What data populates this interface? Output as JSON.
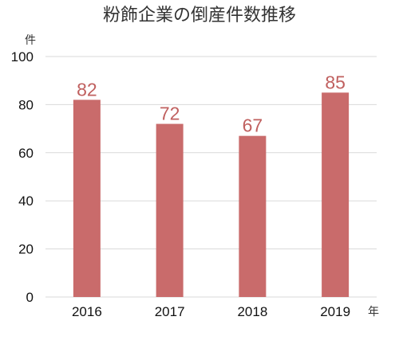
{
  "chart_data": {
    "type": "bar",
    "title": "粉飾企業の倒産件数推移",
    "ylabel": "件",
    "xlabel": "年",
    "categories": [
      "2016",
      "2017",
      "2018",
      "2019"
    ],
    "values": [
      82,
      72,
      67,
      85
    ],
    "data_labels": [
      "82",
      "72",
      "67",
      "85"
    ],
    "ylim": [
      0,
      100
    ],
    "yticks": [
      0,
      20,
      40,
      60,
      80,
      100
    ],
    "ytick_labels": [
      "0",
      "20",
      "40",
      "60",
      "80",
      "100"
    ],
    "grid": true,
    "legend": "none",
    "bar_color": "#c96b6b",
    "label_color": "#c0605f",
    "grid_color": "#d9d9d9"
  }
}
